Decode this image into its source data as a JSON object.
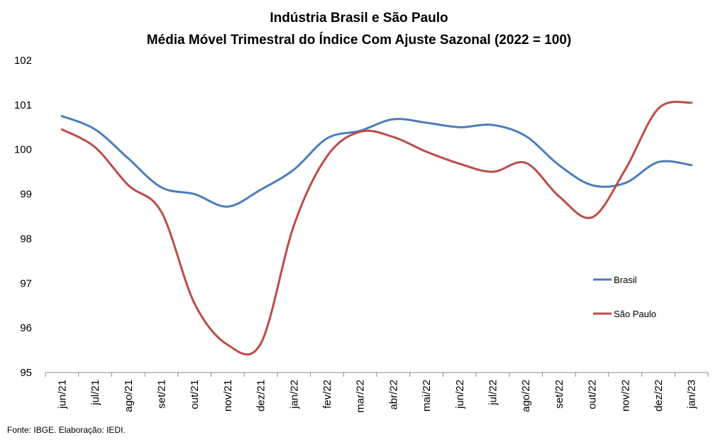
{
  "chart_data": {
    "type": "line",
    "title": "Indústria Brasil e São Paulo",
    "subtitle": "Média Móvel Trimestral do Índice Com Ajuste Sazonal (2022 = 100)",
    "xlabel": "",
    "ylabel": "",
    "ylim": [
      95,
      102
    ],
    "yticks": [
      "95",
      "96",
      "97",
      "98",
      "99",
      "100",
      "101",
      "102"
    ],
    "grid": false,
    "legend_position": "right",
    "categories": [
      "jun/21",
      "jul/21",
      "ago/21",
      "set/21",
      "out/21",
      "nov/21",
      "dez/21",
      "jan/22",
      "fev/22",
      "mar/22",
      "abr/22",
      "mai/22",
      "jun/22",
      "jul/22",
      "ago/22",
      "set/22",
      "out/22",
      "nov/22",
      "dez/22",
      "jan/23"
    ],
    "series": [
      {
        "name": "Brasil",
        "color": "#4a7ebb",
        "values": [
          100.75,
          100.45,
          99.8,
          99.15,
          99.0,
          98.72,
          99.1,
          99.55,
          100.25,
          100.42,
          100.68,
          100.6,
          100.5,
          100.55,
          100.3,
          99.65,
          99.2,
          99.25,
          99.72,
          99.65
        ]
      },
      {
        "name": "São Paulo",
        "color": "#be4b48",
        "values": [
          100.45,
          100.05,
          99.2,
          98.6,
          96.55,
          95.62,
          95.65,
          98.3,
          99.85,
          100.4,
          100.28,
          99.95,
          99.68,
          99.5,
          99.7,
          98.95,
          98.48,
          99.55,
          100.92,
          101.05
        ]
      }
    ],
    "source": "Fonte: IBGE. Elaboração: IEDI."
  }
}
